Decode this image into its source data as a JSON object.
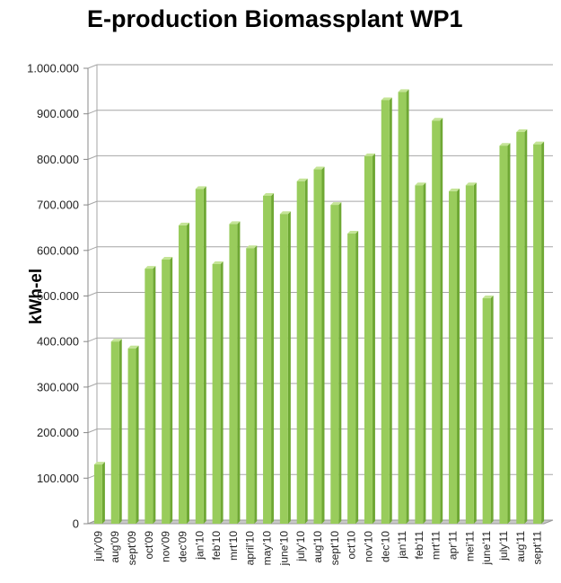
{
  "chart_data": {
    "type": "bar",
    "title": "E-production Biomassplant WP1",
    "xlabel": "",
    "ylabel": "kWh-el",
    "ylim": [
      0,
      1000000
    ],
    "y_ticks": [
      0,
      100000,
      200000,
      300000,
      400000,
      500000,
      600000,
      700000,
      800000,
      900000,
      1000000
    ],
    "y_tick_labels": [
      "0",
      "100.000",
      "200.000",
      "300.000",
      "400.000",
      "500.000",
      "600.000",
      "700.000",
      "800.000",
      "900.000",
      "1.000.000"
    ],
    "grid": true,
    "legend": "none",
    "categories": [
      "july'09",
      "aug'09",
      "sept'09",
      "oct'09",
      "nov'09",
      "dec'09",
      "jan'10",
      "feb'10",
      "mrt'10",
      "april'10",
      "may'10",
      "june'10",
      "july'10",
      "aug'10",
      "sept'10",
      "oct'10",
      "nov'10",
      "dec'10",
      "jan'11",
      "feb'11",
      "mrt'11",
      "apr'11",
      "mei'11",
      "june'11",
      "july'11",
      "aug'11",
      "sept'11"
    ],
    "values": [
      130000,
      400000,
      385000,
      560000,
      580000,
      655000,
      735000,
      570000,
      658000,
      605000,
      720000,
      680000,
      752000,
      778000,
      700000,
      637000,
      807000,
      930000,
      948000,
      743000,
      885000,
      730000,
      743000,
      495000,
      830000,
      860000,
      833000
    ],
    "colors": {
      "bar_front": "#99cc5c",
      "bar_top": "#c4e496",
      "bar_side": "#6fa834",
      "grid": "#a6a6a6",
      "floor": "#c8c8c8"
    }
  }
}
